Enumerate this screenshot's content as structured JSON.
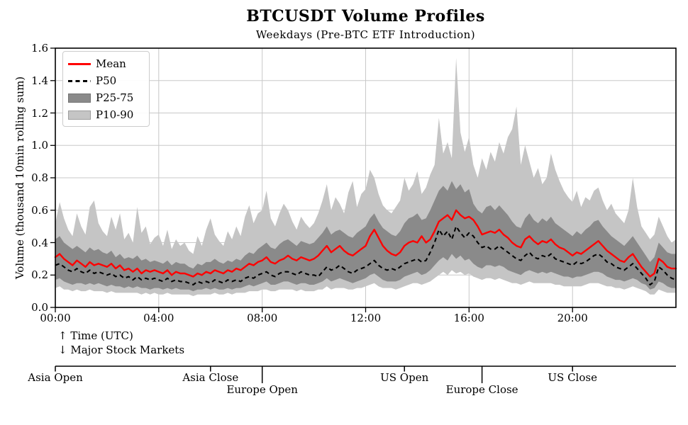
{
  "chart": {
    "title": "BTCUSDT Volume Profiles",
    "subtitle": "Weekdays (Pre-BTC ETF Introduction)",
    "ylabel": "Volume (thousand 10min rolling sum)",
    "annotations": {
      "time_axis": "↑ Time (UTC)",
      "markets_axis": "↓ Major Stock Markets"
    },
    "legend": [
      {
        "label": "Mean",
        "swatch": "line",
        "color": "#ff0000",
        "edge": "#ff0000"
      },
      {
        "label": "P50",
        "swatch": "dashed",
        "color": "#000000",
        "edge": "#000000"
      },
      {
        "label": "P25-75",
        "swatch": "patch",
        "color": "#8a8a8a",
        "edge": "#757575"
      },
      {
        "label": "P10-90",
        "swatch": "patch",
        "color": "#c5c5c5",
        "edge": "#9e9e9e"
      }
    ],
    "x_ticks": [
      {
        "hour": 0,
        "label": "00:00"
      },
      {
        "hour": 4,
        "label": "04:00"
      },
      {
        "hour": 8,
        "label": "08:00"
      },
      {
        "hour": 12,
        "label": "12:00"
      },
      {
        "hour": 16,
        "label": "16:00"
      },
      {
        "hour": 20,
        "label": "20:00"
      }
    ],
    "y_ticks": [
      {
        "value": 0.0,
        "label": "0.0"
      },
      {
        "value": 0.2,
        "label": "0.2"
      },
      {
        "value": 0.4,
        "label": "0.4"
      },
      {
        "value": 0.6,
        "label": "0.6"
      },
      {
        "value": 0.8,
        "label": "0.8"
      },
      {
        "value": 1.0,
        "label": "1.0"
      },
      {
        "value": 1.2,
        "label": "1.2"
      },
      {
        "value": 1.4,
        "label": "1.4"
      },
      {
        "value": 1.6,
        "label": "1.6"
      }
    ],
    "market_axis": {
      "ticks": [
        {
          "label": "Asia Open",
          "hour": 0,
          "row": 1
        },
        {
          "label": "Asia Close",
          "hour": 6,
          "row": 1
        },
        {
          "label": "Europe Open",
          "hour": 8,
          "row": 2
        },
        {
          "label": "US Open",
          "hour": 13.5,
          "row": 1
        },
        {
          "label": "Europe Close",
          "hour": 16.5,
          "row": 2
        },
        {
          "label": "US Close",
          "hour": 20,
          "row": 1
        }
      ]
    },
    "colors": {
      "mean": "#ff0000",
      "p50": "#000000",
      "band_25_75": "#8a8a8a",
      "band_10_90": "#c5c5c5",
      "grid": "#c8c8c8",
      "axis": "#000000"
    }
  },
  "chart_data": {
    "type": "area",
    "title": "BTCUSDT Volume Profiles",
    "subtitle": "Weekdays (Pre-BTC ETF Introduction)",
    "xlabel": "Time (UTC)",
    "ylabel": "Volume (thousand 10min rolling sum)",
    "x_unit": "hours_utc",
    "x_range": [
      0,
      24
    ],
    "ylim": [
      0,
      1.6
    ],
    "x_step_minutes": 10,
    "grid": true,
    "legend_position": "upper left",
    "series": [
      {
        "name": "Mean",
        "style": "line",
        "color": "#ff0000",
        "values": [
          0.31,
          0.33,
          0.3,
          0.28,
          0.26,
          0.29,
          0.27,
          0.25,
          0.28,
          0.26,
          0.27,
          0.26,
          0.25,
          0.27,
          0.24,
          0.26,
          0.23,
          0.24,
          0.22,
          0.24,
          0.21,
          0.23,
          0.22,
          0.23,
          0.22,
          0.21,
          0.23,
          0.2,
          0.22,
          0.21,
          0.21,
          0.2,
          0.19,
          0.21,
          0.2,
          0.22,
          0.21,
          0.23,
          0.22,
          0.21,
          0.23,
          0.22,
          0.24,
          0.23,
          0.25,
          0.27,
          0.26,
          0.28,
          0.29,
          0.31,
          0.28,
          0.27,
          0.29,
          0.3,
          0.32,
          0.3,
          0.29,
          0.31,
          0.3,
          0.29,
          0.3,
          0.32,
          0.35,
          0.38,
          0.34,
          0.36,
          0.38,
          0.35,
          0.33,
          0.32,
          0.34,
          0.36,
          0.38,
          0.44,
          0.48,
          0.43,
          0.38,
          0.35,
          0.33,
          0.32,
          0.34,
          0.38,
          0.4,
          0.41,
          0.4,
          0.44,
          0.4,
          0.42,
          0.47,
          0.53,
          0.55,
          0.57,
          0.54,
          0.6,
          0.57,
          0.55,
          0.56,
          0.54,
          0.5,
          0.45,
          0.46,
          0.47,
          0.46,
          0.48,
          0.45,
          0.43,
          0.4,
          0.38,
          0.37,
          0.42,
          0.44,
          0.41,
          0.39,
          0.41,
          0.4,
          0.42,
          0.39,
          0.37,
          0.36,
          0.34,
          0.32,
          0.34,
          0.33,
          0.35,
          0.37,
          0.39,
          0.41,
          0.38,
          0.35,
          0.33,
          0.31,
          0.29,
          0.28,
          0.31,
          0.33,
          0.29,
          0.25,
          0.22,
          0.19,
          0.21,
          0.3,
          0.28,
          0.25,
          0.24,
          0.24
        ]
      },
      {
        "name": "P50",
        "style": "dashed-line",
        "color": "#000000",
        "values": [
          0.26,
          0.27,
          0.25,
          0.23,
          0.22,
          0.24,
          0.22,
          0.21,
          0.23,
          0.21,
          0.22,
          0.21,
          0.2,
          0.21,
          0.19,
          0.2,
          0.18,
          0.19,
          0.17,
          0.19,
          0.17,
          0.18,
          0.17,
          0.18,
          0.17,
          0.16,
          0.18,
          0.16,
          0.17,
          0.16,
          0.16,
          0.15,
          0.14,
          0.16,
          0.15,
          0.16,
          0.15,
          0.17,
          0.16,
          0.15,
          0.17,
          0.16,
          0.17,
          0.16,
          0.18,
          0.19,
          0.18,
          0.2,
          0.21,
          0.22,
          0.2,
          0.19,
          0.21,
          0.22,
          0.22,
          0.21,
          0.2,
          0.22,
          0.21,
          0.2,
          0.2,
          0.19,
          0.22,
          0.25,
          0.23,
          0.24,
          0.26,
          0.24,
          0.22,
          0.21,
          0.23,
          0.24,
          0.25,
          0.27,
          0.29,
          0.26,
          0.24,
          0.23,
          0.24,
          0.23,
          0.25,
          0.27,
          0.28,
          0.29,
          0.3,
          0.28,
          0.29,
          0.34,
          0.4,
          0.48,
          0.44,
          0.47,
          0.42,
          0.5,
          0.46,
          0.43,
          0.46,
          0.44,
          0.4,
          0.37,
          0.38,
          0.36,
          0.36,
          0.38,
          0.36,
          0.34,
          0.32,
          0.3,
          0.29,
          0.32,
          0.34,
          0.31,
          0.3,
          0.32,
          0.31,
          0.33,
          0.3,
          0.29,
          0.28,
          0.27,
          0.26,
          0.28,
          0.27,
          0.28,
          0.3,
          0.32,
          0.33,
          0.31,
          0.28,
          0.27,
          0.25,
          0.24,
          0.23,
          0.25,
          0.27,
          0.24,
          0.21,
          0.18,
          0.14,
          0.16,
          0.25,
          0.23,
          0.2,
          0.18,
          0.17
        ]
      },
      {
        "name": "P25-75",
        "style": "band",
        "color": "#8a8a8a",
        "lower": [
          0.17,
          0.18,
          0.16,
          0.15,
          0.14,
          0.15,
          0.15,
          0.14,
          0.15,
          0.14,
          0.15,
          0.14,
          0.13,
          0.14,
          0.13,
          0.13,
          0.12,
          0.13,
          0.12,
          0.13,
          0.12,
          0.12,
          0.11,
          0.12,
          0.12,
          0.11,
          0.12,
          0.11,
          0.12,
          0.11,
          0.11,
          0.11,
          0.1,
          0.11,
          0.11,
          0.12,
          0.11,
          0.12,
          0.11,
          0.11,
          0.12,
          0.11,
          0.12,
          0.12,
          0.13,
          0.14,
          0.13,
          0.14,
          0.15,
          0.16,
          0.14,
          0.14,
          0.15,
          0.16,
          0.16,
          0.15,
          0.14,
          0.15,
          0.15,
          0.14,
          0.14,
          0.15,
          0.16,
          0.18,
          0.16,
          0.17,
          0.18,
          0.17,
          0.16,
          0.15,
          0.16,
          0.17,
          0.18,
          0.2,
          0.21,
          0.19,
          0.17,
          0.16,
          0.16,
          0.16,
          0.17,
          0.19,
          0.2,
          0.21,
          0.22,
          0.2,
          0.21,
          0.23,
          0.26,
          0.29,
          0.31,
          0.29,
          0.33,
          0.3,
          0.32,
          0.29,
          0.3,
          0.27,
          0.25,
          0.24,
          0.26,
          0.26,
          0.25,
          0.26,
          0.25,
          0.23,
          0.22,
          0.21,
          0.2,
          0.22,
          0.23,
          0.22,
          0.21,
          0.22,
          0.21,
          0.22,
          0.21,
          0.2,
          0.19,
          0.19,
          0.18,
          0.19,
          0.19,
          0.2,
          0.21,
          0.22,
          0.22,
          0.21,
          0.19,
          0.18,
          0.17,
          0.17,
          0.16,
          0.17,
          0.18,
          0.17,
          0.15,
          0.14,
          0.11,
          0.12,
          0.16,
          0.15,
          0.13,
          0.12,
          0.12
        ],
        "upper": [
          0.42,
          0.44,
          0.4,
          0.38,
          0.36,
          0.38,
          0.36,
          0.34,
          0.37,
          0.35,
          0.36,
          0.34,
          0.33,
          0.35,
          0.31,
          0.33,
          0.3,
          0.31,
          0.3,
          0.32,
          0.29,
          0.3,
          0.28,
          0.29,
          0.28,
          0.27,
          0.29,
          0.26,
          0.28,
          0.27,
          0.27,
          0.25,
          0.24,
          0.27,
          0.26,
          0.28,
          0.28,
          0.3,
          0.28,
          0.27,
          0.29,
          0.28,
          0.3,
          0.29,
          0.32,
          0.34,
          0.33,
          0.36,
          0.38,
          0.4,
          0.37,
          0.36,
          0.39,
          0.41,
          0.42,
          0.4,
          0.38,
          0.41,
          0.4,
          0.39,
          0.4,
          0.43,
          0.46,
          0.5,
          0.45,
          0.47,
          0.48,
          0.46,
          0.44,
          0.43,
          0.46,
          0.48,
          0.5,
          0.55,
          0.58,
          0.53,
          0.49,
          0.47,
          0.45,
          0.44,
          0.47,
          0.52,
          0.55,
          0.56,
          0.58,
          0.54,
          0.55,
          0.6,
          0.66,
          0.72,
          0.75,
          0.72,
          0.78,
          0.73,
          0.76,
          0.71,
          0.73,
          0.64,
          0.6,
          0.58,
          0.62,
          0.63,
          0.6,
          0.63,
          0.6,
          0.57,
          0.53,
          0.5,
          0.49,
          0.55,
          0.58,
          0.54,
          0.52,
          0.55,
          0.53,
          0.56,
          0.52,
          0.5,
          0.48,
          0.46,
          0.44,
          0.47,
          0.45,
          0.48,
          0.5,
          0.53,
          0.54,
          0.5,
          0.47,
          0.44,
          0.42,
          0.4,
          0.38,
          0.41,
          0.44,
          0.4,
          0.36,
          0.32,
          0.28,
          0.31,
          0.4,
          0.37,
          0.34,
          0.33,
          0.33
        ]
      },
      {
        "name": "P10-90",
        "style": "band",
        "color": "#c5c5c5",
        "lower": [
          0.12,
          0.13,
          0.11,
          0.11,
          0.1,
          0.11,
          0.1,
          0.1,
          0.11,
          0.1,
          0.1,
          0.1,
          0.09,
          0.1,
          0.09,
          0.09,
          0.09,
          0.09,
          0.09,
          0.09,
          0.08,
          0.09,
          0.08,
          0.09,
          0.08,
          0.08,
          0.09,
          0.08,
          0.08,
          0.08,
          0.08,
          0.08,
          0.07,
          0.08,
          0.08,
          0.08,
          0.08,
          0.09,
          0.08,
          0.08,
          0.09,
          0.08,
          0.09,
          0.09,
          0.09,
          0.1,
          0.1,
          0.1,
          0.11,
          0.11,
          0.1,
          0.1,
          0.11,
          0.11,
          0.11,
          0.11,
          0.1,
          0.11,
          0.1,
          0.1,
          0.1,
          0.11,
          0.11,
          0.13,
          0.11,
          0.12,
          0.12,
          0.12,
          0.11,
          0.11,
          0.12,
          0.12,
          0.13,
          0.14,
          0.15,
          0.13,
          0.12,
          0.12,
          0.12,
          0.11,
          0.12,
          0.13,
          0.14,
          0.15,
          0.15,
          0.14,
          0.15,
          0.16,
          0.18,
          0.2,
          0.22,
          0.2,
          0.23,
          0.21,
          0.22,
          0.2,
          0.21,
          0.19,
          0.18,
          0.17,
          0.18,
          0.18,
          0.17,
          0.18,
          0.17,
          0.16,
          0.15,
          0.15,
          0.14,
          0.15,
          0.16,
          0.15,
          0.15,
          0.15,
          0.15,
          0.15,
          0.14,
          0.14,
          0.13,
          0.13,
          0.13,
          0.13,
          0.13,
          0.14,
          0.15,
          0.15,
          0.15,
          0.14,
          0.13,
          0.13,
          0.12,
          0.12,
          0.11,
          0.12,
          0.13,
          0.12,
          0.11,
          0.1,
          0.08,
          0.08,
          0.11,
          0.1,
          0.09,
          0.09,
          0.09
        ],
        "upper": [
          0.52,
          0.65,
          0.55,
          0.48,
          0.44,
          0.58,
          0.5,
          0.45,
          0.62,
          0.66,
          0.52,
          0.47,
          0.44,
          0.56,
          0.48,
          0.58,
          0.42,
          0.46,
          0.4,
          0.62,
          0.46,
          0.5,
          0.39,
          0.43,
          0.45,
          0.38,
          0.48,
          0.36,
          0.42,
          0.38,
          0.4,
          0.35,
          0.33,
          0.44,
          0.38,
          0.48,
          0.55,
          0.45,
          0.41,
          0.38,
          0.47,
          0.42,
          0.5,
          0.44,
          0.56,
          0.63,
          0.52,
          0.58,
          0.6,
          0.72,
          0.55,
          0.5,
          0.58,
          0.64,
          0.6,
          0.53,
          0.48,
          0.56,
          0.52,
          0.49,
          0.52,
          0.58,
          0.66,
          0.76,
          0.6,
          0.68,
          0.64,
          0.58,
          0.71,
          0.78,
          0.62,
          0.7,
          0.73,
          0.85,
          0.8,
          0.7,
          0.63,
          0.6,
          0.58,
          0.62,
          0.66,
          0.8,
          0.72,
          0.76,
          0.84,
          0.7,
          0.74,
          0.82,
          0.88,
          1.17,
          0.95,
          1.02,
          0.92,
          1.54,
          1.08,
          0.96,
          1.05,
          0.88,
          0.8,
          0.92,
          0.85,
          0.96,
          0.9,
          1.02,
          0.95,
          1.05,
          1.1,
          1.24,
          0.88,
          1.0,
          0.9,
          0.8,
          0.86,
          0.76,
          0.8,
          0.95,
          0.85,
          0.78,
          0.72,
          0.68,
          0.65,
          0.72,
          0.62,
          0.68,
          0.66,
          0.72,
          0.74,
          0.66,
          0.6,
          0.64,
          0.58,
          0.55,
          0.52,
          0.6,
          0.8,
          0.62,
          0.5,
          0.46,
          0.42,
          0.45,
          0.56,
          0.5,
          0.44,
          0.4,
          0.42
        ]
      }
    ]
  }
}
